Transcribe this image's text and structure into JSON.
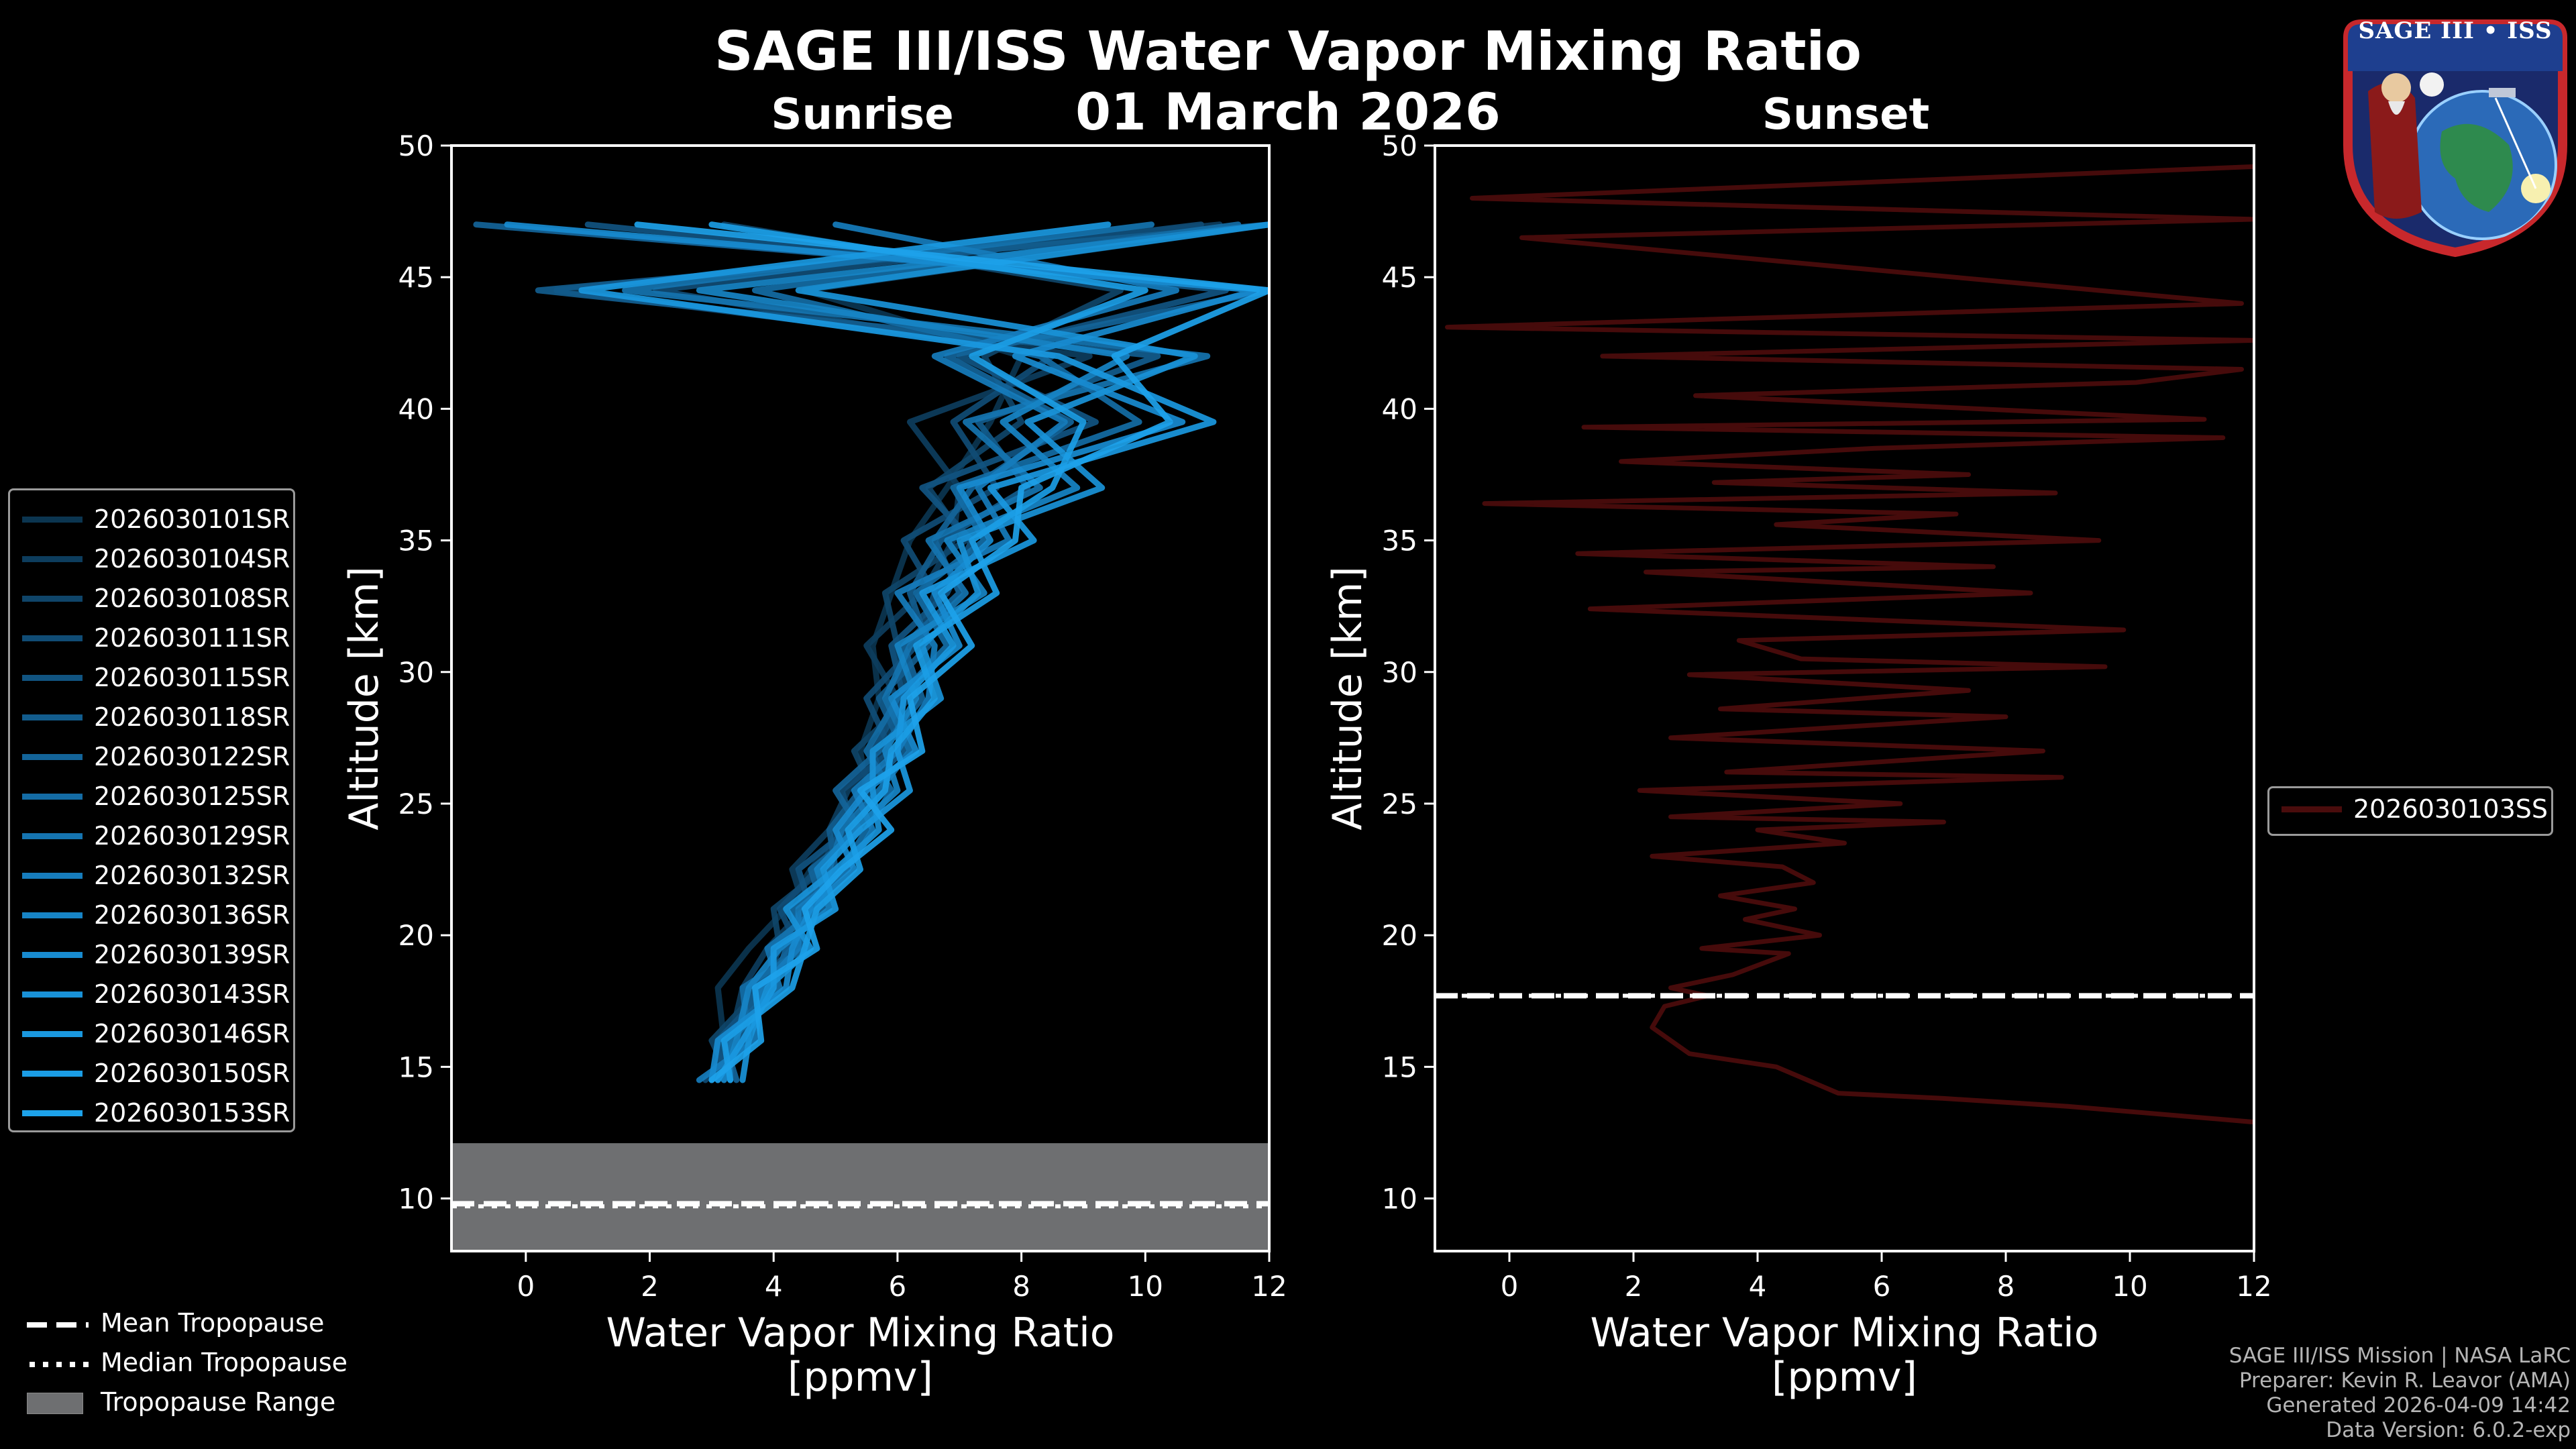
{
  "header": {
    "title": "SAGE III/ISS Water Vapor Mixing Ratio",
    "date": "01 March 2026"
  },
  "panels": {
    "left_title": "Sunrise",
    "right_title": "Sunset",
    "xlabel_line1": "Water Vapor Mixing Ratio",
    "xlabel_line2": "[ppmv]",
    "ylabel": "Altitude [km]"
  },
  "chart_data": [
    {
      "type": "line",
      "title": "Sunrise",
      "xlabel": "Water Vapor Mixing Ratio [ppmv]",
      "ylabel": "Altitude [km]",
      "xlim": [
        -1.2,
        12
      ],
      "ylim": [
        8,
        50
      ],
      "xticks": [
        0,
        2,
        4,
        6,
        8,
        10,
        12
      ],
      "yticks": [
        10,
        15,
        20,
        25,
        30,
        35,
        40,
        45,
        50
      ],
      "tropopause_range_km": [
        8,
        12.1
      ],
      "mean_tropopause_km": 9.8,
      "median_tropopause_km": 9.7,
      "series": [
        {
          "name": "2026030101SR",
          "color": "#0b3550",
          "x": [
            3.0,
            3.2,
            3.1,
            3.6,
            4.2,
            4.6,
            5.1,
            5.5,
            5.4,
            5.7,
            5.6,
            5.9,
            6.2,
            6.8,
            7.5,
            8.0,
            4.5,
            12.0
          ]
        },
        {
          "name": "2026030104SR",
          "color": "#0d3d5d",
          "x": [
            3.1,
            3.3,
            3.5,
            3.9,
            4.5,
            4.3,
            4.9,
            5.2,
            5.8,
            6.0,
            5.5,
            6.4,
            6.9,
            7.0,
            6.2,
            9.1,
            0.5,
            11.2
          ]
        },
        {
          "name": "2026030108SR",
          "color": "#0f4569",
          "x": [
            3.3,
            3.0,
            3.8,
            4.1,
            4.0,
            4.8,
            5.0,
            5.6,
            5.3,
            6.2,
            6.0,
            5.8,
            7.1,
            6.5,
            8.0,
            7.4,
            9.6,
            3.2
          ]
        },
        {
          "name": "2026030111SR",
          "color": "#104c75",
          "x": [
            2.9,
            3.4,
            3.6,
            4.4,
            4.1,
            4.7,
            5.3,
            5.1,
            5.9,
            5.5,
            6.3,
            6.6,
            6.1,
            7.6,
            6.9,
            8.5,
            2.1,
            10.9
          ]
        },
        {
          "name": "2026030115SR",
          "color": "#115481",
          "x": [
            3.2,
            3.1,
            3.9,
            4.0,
            4.6,
            4.4,
            5.2,
            5.8,
            5.6,
            6.1,
            5.9,
            6.8,
            7.2,
            6.4,
            9.2,
            7.0,
            11.3,
            1.0
          ]
        },
        {
          "name": "2026030118SR",
          "color": "#125c8d",
          "x": [
            3.0,
            3.5,
            3.7,
            4.3,
            4.5,
            5.0,
            4.9,
            5.4,
            6.1,
            5.7,
            6.5,
            6.2,
            6.7,
            8.1,
            7.3,
            10.2,
            0.2,
            12.0
          ]
        },
        {
          "name": "2026030122SR",
          "color": "#136499",
          "x": [
            3.4,
            3.2,
            4.0,
            4.2,
            4.8,
            4.6,
            5.4,
            5.0,
            5.7,
            6.4,
            6.1,
            7.0,
            6.6,
            7.2,
            8.8,
            6.8,
            12.0,
            -0.8
          ]
        },
        {
          "name": "2026030125SR",
          "color": "#146ca5",
          "x": [
            3.1,
            3.6,
            3.5,
            4.5,
            4.3,
            5.1,
            5.5,
            5.9,
            5.5,
            6.0,
            6.8,
            6.3,
            7.4,
            6.9,
            9.9,
            8.3,
            3.7,
            11.5
          ]
        },
        {
          "name": "2026030129SR",
          "color": "#1574b0",
          "x": [
            3.3,
            3.3,
            4.1,
            3.9,
            4.7,
            4.9,
            5.1,
            5.7,
            6.2,
            5.8,
            6.2,
            7.1,
            6.5,
            8.3,
            7.1,
            11.0,
            1.6,
            10.1
          ]
        },
        {
          "name": "2026030132SR",
          "color": "#167cbc",
          "x": [
            2.8,
            3.7,
            3.8,
            4.4,
            4.4,
            5.2,
            5.6,
            5.3,
            6.0,
            6.5,
            6.6,
            6.0,
            7.8,
            7.3,
            8.7,
            6.6,
            10.5,
            5.0
          ]
        },
        {
          "name": "2026030136SR",
          "color": "#1784c6",
          "x": [
            3.2,
            3.4,
            3.6,
            4.1,
            4.9,
            4.7,
            5.3,
            6.0,
            5.8,
            6.3,
            6.0,
            7.4,
            6.8,
            8.9,
            7.7,
            9.7,
            2.8,
            12.0
          ]
        },
        {
          "name": "2026030139SR",
          "color": "#188bd0",
          "x": [
            3.0,
            3.1,
            4.2,
            4.3,
            4.6,
            5.3,
            5.0,
            5.5,
            6.3,
            5.9,
            7.0,
            6.6,
            7.5,
            7.0,
            10.6,
            7.9,
            11.8,
            -0.3
          ]
        },
        {
          "name": "2026030143SR",
          "color": "#1992d8",
          "x": [
            3.5,
            3.6,
            3.9,
            4.6,
            4.2,
            5.0,
            5.7,
            5.6,
            5.6,
            6.7,
            6.4,
            7.3,
            7.0,
            9.3,
            8.1,
            10.8,
            4.4,
            12.0
          ]
        },
        {
          "name": "2026030146SR",
          "color": "#1a98df",
          "x": [
            3.1,
            3.5,
            4.0,
            4.0,
            5.0,
            4.8,
            5.4,
            6.2,
            6.0,
            6.1,
            6.9,
            6.4,
            8.2,
            7.5,
            11.1,
            8.6,
            0.9,
            9.4
          ]
        },
        {
          "name": "2026030150SR",
          "color": "#1b9de5",
          "x": [
            3.3,
            3.2,
            4.3,
            4.5,
            4.7,
            5.4,
            5.2,
            5.8,
            5.9,
            6.6,
            6.3,
            7.6,
            7.2,
            8.5,
            9.0,
            7.2,
            10.0,
            3.0
          ]
        },
        {
          "name": "2026030153SR",
          "color": "#1da2ea",
          "x": [
            3.0,
            3.8,
            3.7,
            4.7,
            4.5,
            5.1,
            5.9,
            5.4,
            6.4,
            6.2,
            7.2,
            6.7,
            7.9,
            8.0,
            10.4,
            9.5,
            12.0,
            1.8
          ]
        }
      ],
      "y": [
        14.5,
        16,
        18,
        19.5,
        21,
        22.5,
        24,
        25.5,
        27,
        29,
        31,
        33,
        35,
        37,
        39.5,
        42,
        44.5,
        47
      ]
    },
    {
      "type": "line",
      "title": "Sunset",
      "xlabel": "Water Vapor Mixing Ratio [ppmv]",
      "ylabel": "Altitude [km]",
      "xlim": [
        -1.2,
        12
      ],
      "ylim": [
        8,
        50
      ],
      "xticks": [
        0,
        2,
        4,
        6,
        8,
        10,
        12
      ],
      "yticks": [
        10,
        15,
        20,
        25,
        30,
        35,
        40,
        45,
        50
      ],
      "mean_tropopause_km": 17.7,
      "median_tropopause_km": 17.7,
      "series": [
        {
          "name": "2026030103SS",
          "color": "#4a0c0c",
          "x": [
            12.0,
            9.0,
            7.0,
            5.3,
            4.3,
            2.9,
            2.3,
            2.5,
            3.2,
            2.6,
            3.6,
            4.5,
            3.1,
            5.0,
            3.8,
            4.6,
            3.4,
            4.9,
            4.4,
            2.3,
            5.4,
            4.0,
            7.0,
            2.6,
            6.3,
            2.1,
            8.9,
            3.5,
            8.6,
            2.6,
            8.0,
            3.4,
            7.4,
            2.9,
            9.6,
            4.7,
            3.7,
            9.9,
            1.3,
            8.4,
            2.2,
            7.8,
            1.1,
            9.5,
            4.3,
            7.2,
            -0.4,
            8.8,
            3.3,
            7.4,
            1.8,
            5.9,
            11.5,
            1.2,
            11.2,
            3.0,
            10.1,
            11.8,
            1.5,
            12.0,
            -1.0,
            11.8,
            0.2,
            12.0,
            -0.6,
            12.0
          ],
          "y": [
            12.9,
            13.5,
            13.8,
            14.0,
            15.0,
            15.5,
            16.5,
            17.3,
            17.7,
            18.0,
            18.5,
            19.3,
            19.5,
            20.0,
            20.6,
            21.0,
            21.5,
            22.0,
            22.6,
            23.0,
            23.5,
            24.0,
            24.3,
            24.5,
            25.0,
            25.5,
            26.0,
            26.2,
            27.0,
            27.5,
            28.3,
            28.6,
            29.3,
            29.9,
            30.2,
            30.5,
            31.2,
            31.6,
            32.4,
            33.0,
            33.8,
            34.0,
            34.5,
            35.0,
            35.6,
            36.0,
            36.4,
            36.8,
            37.2,
            37.5,
            38.0,
            38.5,
            38.9,
            39.3,
            39.6,
            40.5,
            41.0,
            41.5,
            42.0,
            42.6,
            43.1,
            44.0,
            46.5,
            47.2,
            48.0,
            49.2
          ]
        }
      ]
    }
  ],
  "legend_left": [
    "2026030101SR",
    "2026030104SR",
    "2026030108SR",
    "2026030111SR",
    "2026030115SR",
    "2026030118SR",
    "2026030122SR",
    "2026030125SR",
    "2026030129SR",
    "2026030132SR",
    "2026030136SR",
    "2026030139SR",
    "2026030143SR",
    "2026030146SR",
    "2026030150SR",
    "2026030153SR"
  ],
  "legend_right": [
    "2026030103SS"
  ],
  "tropopause_legend": {
    "mean": "Mean Tropopause",
    "median": "Median Tropopause",
    "range": "Tropopause Range"
  },
  "credits": {
    "line1": "SAGE III/ISS Mission | NASA LaRC",
    "line2": "Preparer: Kevin R. Leavor (AMA)",
    "line3": "Generated 2026-04-09 14:42",
    "line4": "Data Version: 6.0.2-exp"
  },
  "logo": {
    "banner": "SAGE III • ISS"
  },
  "colors": {
    "background": "#000000",
    "range_fill": "#6e6f71",
    "sunset_line": "#4a0c0c"
  }
}
